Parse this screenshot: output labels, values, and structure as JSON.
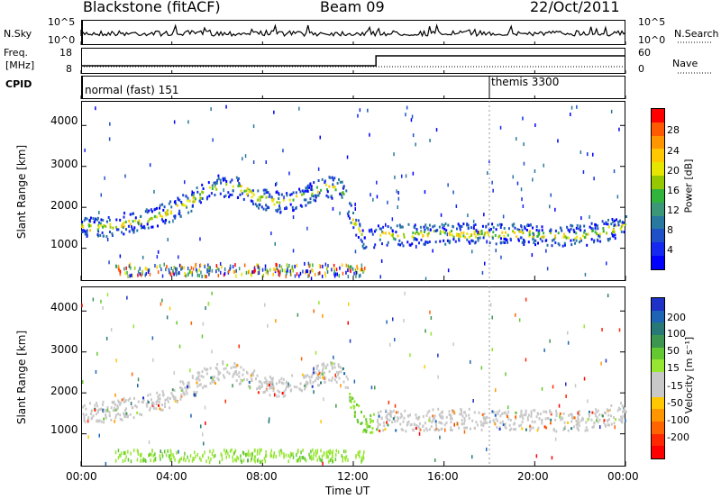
{
  "header": {
    "station": "Blackstone (fitACF)",
    "beam": "Beam 09",
    "date": "22/Oct/2011"
  },
  "sky_panel": {
    "left_label": "N.Sky",
    "right_label": "N.Search",
    "tick_top": "10^5",
    "tick_bottom": "10^0"
  },
  "freq_panel": {
    "left_label_1": "Freq.",
    "left_label_2": "[MHz]",
    "right_label": "Nave",
    "tick_left_top": "18",
    "tick_left_bottom": "8",
    "tick_right_top": "60",
    "tick_right_bottom": "0"
  },
  "cpid_panel": {
    "label": "CPID",
    "program_1": "normal (fast) 151",
    "program_2": "themis 3300"
  },
  "power_colorbar": {
    "label": "Power [dB]",
    "ticks": [
      "28",
      "24",
      "20",
      "16",
      "12",
      "8",
      "4"
    ],
    "colors": [
      "#ff0000",
      "#ff5a00",
      "#ff9600",
      "#ffc800",
      "#e6e600",
      "#96c800",
      "#32b43c",
      "#3c9678",
      "#2878a0",
      "#1e50c8",
      "#1428f0",
      "#0000ff"
    ]
  },
  "velocity_colorbar": {
    "label": "Velocity [m s⁻¹]",
    "ticks": [
      "200",
      "100",
      "50",
      "15",
      "-15",
      "-50",
      "-100",
      "-200"
    ],
    "colors": [
      "#1e32c8",
      "#1e64b4",
      "#287878",
      "#3c9650",
      "#64c832",
      "#96e632",
      "#c8c8c8",
      "#c8c8c8",
      "#ffc800",
      "#ff9600",
      "#ff6400",
      "#ff2800",
      "#ff0000"
    ]
  },
  "chart_data": [
    {
      "type": "heatmap",
      "name": "power",
      "ylabel": "Slant Range [km]",
      "ylim": [
        200,
        4600
      ],
      "yticks": [
        "4000",
        "3000",
        "2000",
        "1000"
      ],
      "xlim": [
        0,
        24
      ],
      "echo_band_center_km": {
        "x": [
          0,
          1,
          2,
          3,
          4,
          5,
          6,
          7,
          8,
          9,
          10,
          10.7,
          11.5,
          12,
          12.5,
          13,
          14,
          16,
          18,
          20,
          22,
          23,
          24
        ],
        "y": [
          1550,
          1550,
          1650,
          1750,
          1950,
          2250,
          2550,
          2500,
          2200,
          2150,
          2350,
          2550,
          2450,
          1700,
          1150,
          1350,
          1350,
          1380,
          1380,
          1370,
          1330,
          1450,
          1550
        ]
      }
    },
    {
      "type": "heatmap",
      "name": "velocity",
      "xlabel": "Time UT",
      "ylabel": "Slant Range [km]",
      "ylim": [
        200,
        4600
      ],
      "yticks": [
        "4000",
        "3000",
        "2000",
        "1000"
      ],
      "xlim": [
        0,
        24
      ],
      "xticks": [
        "00:00",
        "04:00",
        "08:00",
        "12:00",
        "16:00",
        "20:00",
        "00:00"
      ]
    }
  ]
}
